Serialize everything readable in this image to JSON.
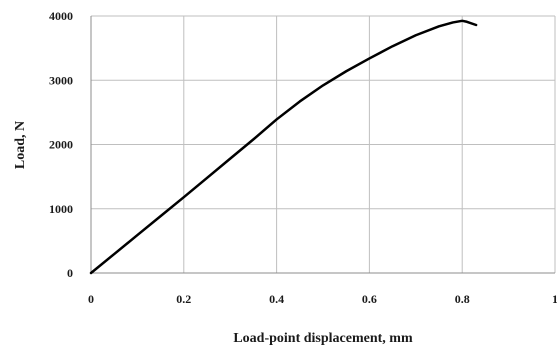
{
  "chart_data": {
    "type": "line",
    "title": "",
    "xlabel": "Load-point displacement, mm",
    "ylabel": "Load, N",
    "xlim": [
      0,
      1
    ],
    "ylim": [
      0,
      4000
    ],
    "x_ticks": [
      0,
      0.2,
      0.4,
      0.6,
      0.8,
      1
    ],
    "x_tick_labels": [
      "0",
      "0.2",
      "0.4",
      "0.6",
      "0.8",
      "1"
    ],
    "y_ticks": [
      0,
      1000,
      2000,
      3000,
      4000
    ],
    "y_tick_labels": [
      "0",
      "1000",
      "2000",
      "3000",
      "4000"
    ],
    "grid": true,
    "legend": "none",
    "line_color": "#000000",
    "series": [
      {
        "x": [
          0,
          0.05,
          0.1,
          0.15,
          0.2,
          0.25,
          0.3,
          0.35,
          0.4,
          0.45,
          0.5,
          0.55,
          0.6,
          0.65,
          0.7,
          0.75,
          0.78,
          0.8,
          0.81,
          0.83
        ],
        "y": [
          0,
          295,
          590,
          885,
          1180,
          1480,
          1780,
          2080,
          2390,
          2670,
          2920,
          3140,
          3340,
          3530,
          3700,
          3840,
          3900,
          3925,
          3910,
          3860
        ]
      }
    ]
  }
}
